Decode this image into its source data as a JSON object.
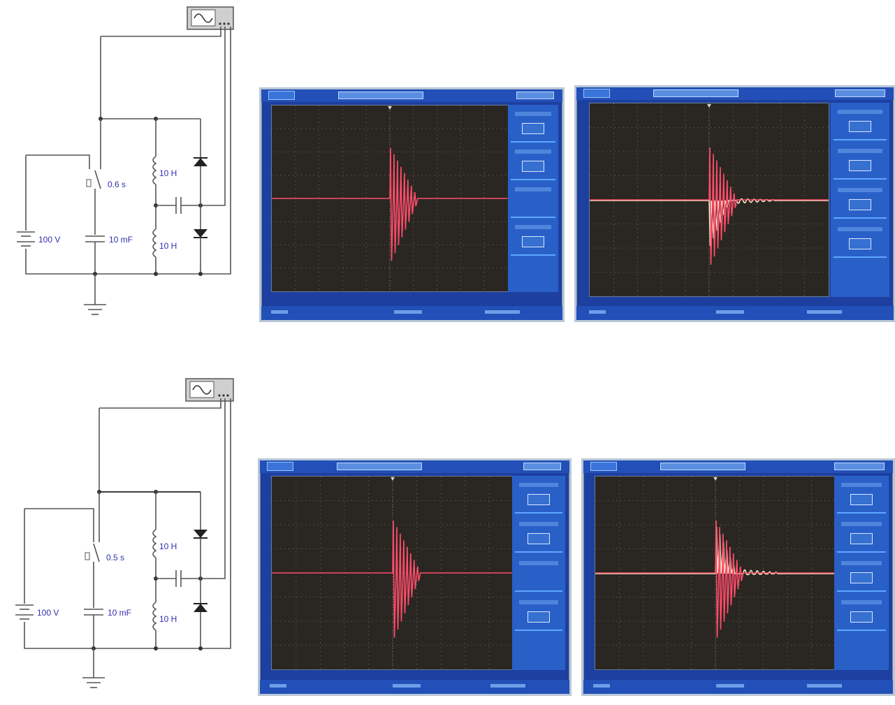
{
  "circuits": [
    {
      "id": "top",
      "switch_time": "0.6 s",
      "voltage": "100 V",
      "capacitor": "10 mF",
      "inductor_top": "10 H",
      "inductor_bottom": "10 H"
    },
    {
      "id": "bottom",
      "switch_time": "0.5 s",
      "voltage": "100 V",
      "capacitor": "10 mF",
      "inductor_top": "10 H",
      "inductor_bottom": "10 H"
    }
  ],
  "colors": {
    "scope_frame": "#1d3fa0",
    "screen_bg": "#2a2622",
    "channel_1": "#ff4d6a",
    "channel_2": "#f4f2d0",
    "circuit_label": "#2f2fb0"
  },
  "scopes": [
    {
      "id": "scope-top-left",
      "channels": 1,
      "menu_items": 4,
      "ringing_channel_2": false
    },
    {
      "id": "scope-top-right",
      "channels": 2,
      "menu_items": 4,
      "ringing_channel_2": "after-decay"
    },
    {
      "id": "scope-bottom-left",
      "channels": 1,
      "menu_items": 4,
      "ringing_channel_2": false
    },
    {
      "id": "scope-bottom-right",
      "channels": 2,
      "menu_items": 4,
      "ringing_channel_2": "above-baseline"
    }
  ]
}
